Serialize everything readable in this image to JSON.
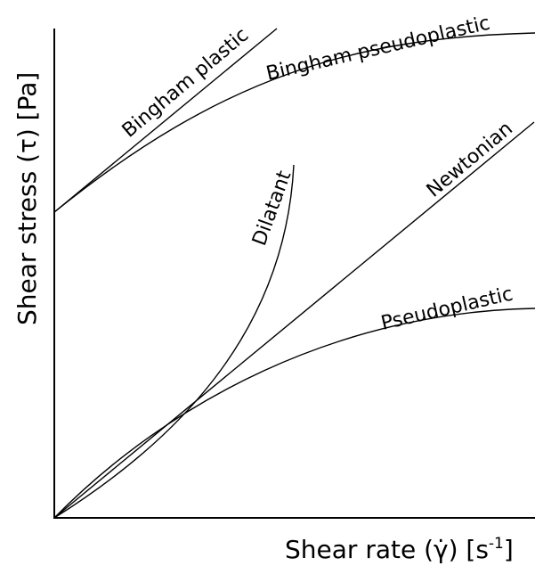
{
  "diagram": {
    "x_axis": {
      "label_prefix": "Shear rate (γ̇) [s",
      "label_superscript": "-1",
      "label_suffix": "]"
    },
    "y_axis": {
      "label": "Shear stress (τ) [Pa]"
    },
    "curves": [
      {
        "id": "bingham-plastic",
        "label": "Bingham plastic"
      },
      {
        "id": "bingham-pseudoplastic",
        "label": "Bingham pseudoplastic"
      },
      {
        "id": "dilatant",
        "label": "Dilatant"
      },
      {
        "id": "newtonian",
        "label": "Newtonian"
      },
      {
        "id": "pseudoplastic",
        "label": "Pseudoplastic"
      }
    ],
    "colors": {
      "line": "#000000",
      "background": "#ffffff"
    }
  }
}
